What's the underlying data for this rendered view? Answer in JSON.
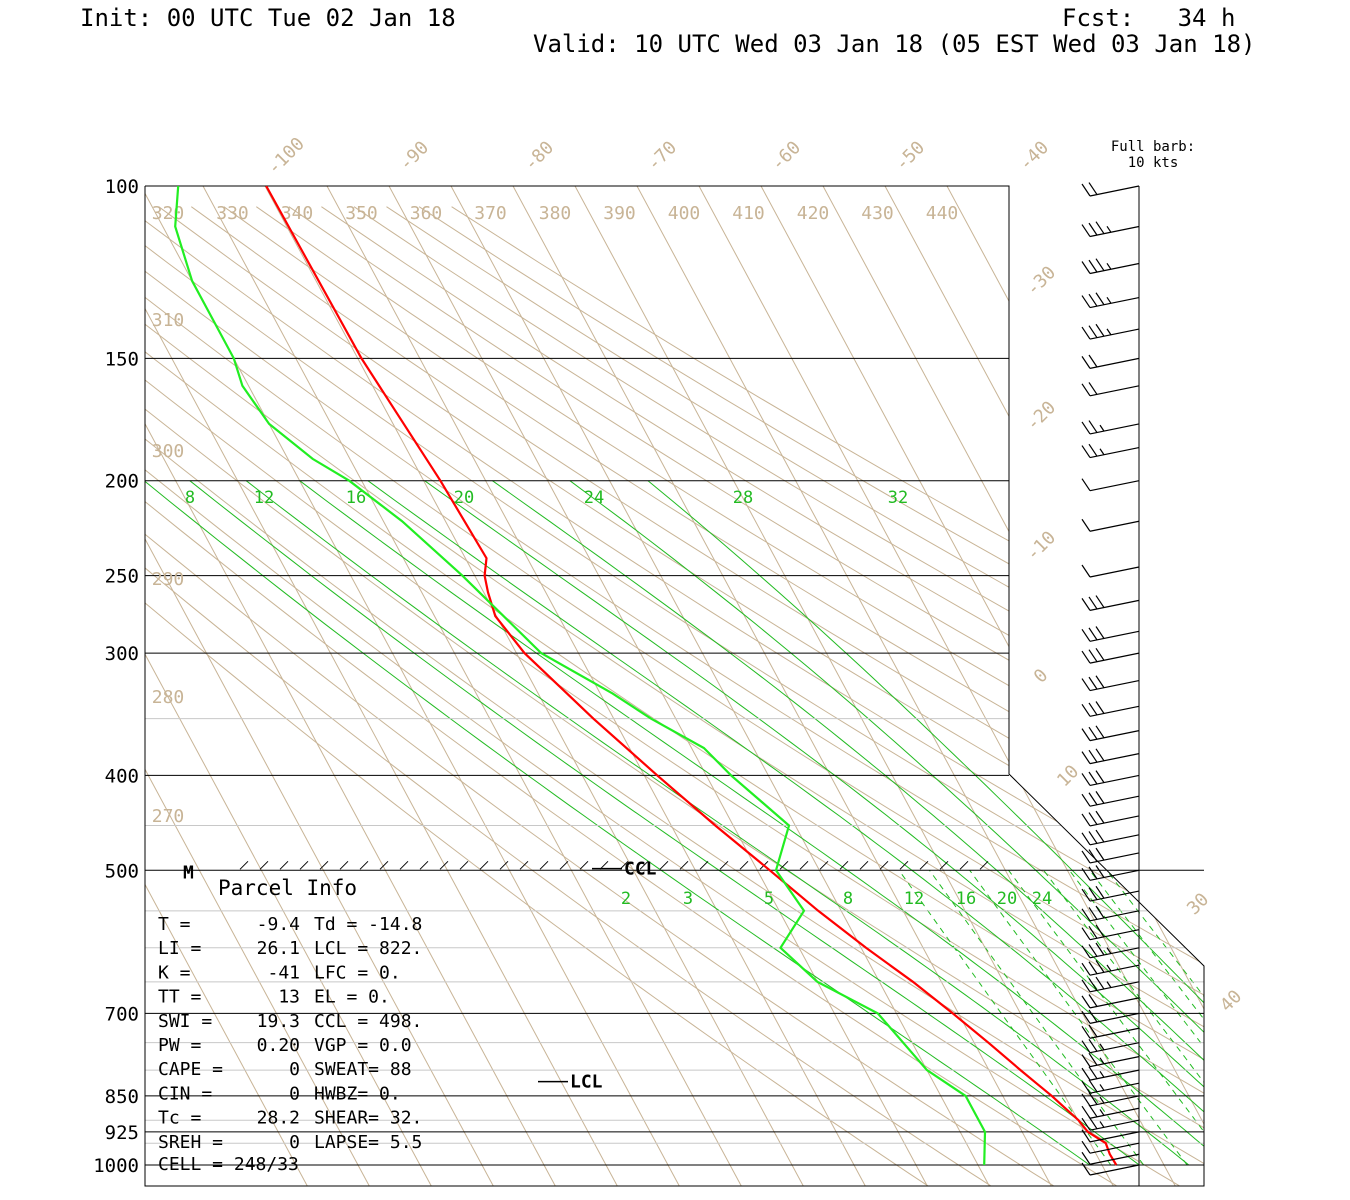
{
  "header": {
    "init": "Init: 00 UTC Tue 02 Jan 18",
    "fcst": "Fcst:   34 h",
    "valid": "Valid: 10 UTC Wed 03 Jan 18 (05 EST Wed 03 Jan 18)"
  },
  "barb_legend": {
    "line1": "Full barb:",
    "line2": "10 kts"
  },
  "chart_data": {
    "type": "line",
    "y_axis": "pressure (hPa), log scale",
    "ylim": [
      1000,
      100
    ],
    "pressure_labels": [
      100,
      150,
      200,
      250,
      300,
      400,
      500,
      700,
      850,
      925,
      1000
    ],
    "isotherm_labels": [
      -100,
      -90,
      -80,
      -70,
      -60,
      -50,
      -40,
      -30,
      -20,
      -10,
      0,
      10,
      30,
      40
    ],
    "theta_labels_top": [
      320,
      330,
      340,
      350,
      360,
      370,
      380,
      390,
      400,
      410,
      420,
      430,
      440
    ],
    "theta_labels_left": [
      310,
      300,
      290,
      280,
      270
    ],
    "mixing_ratio_labels_upper": [
      8,
      12,
      16,
      20,
      24,
      28,
      32
    ],
    "mixing_ratio_labels_lower": [
      2,
      3,
      5,
      8,
      12,
      16,
      20,
      24
    ],
    "series": [
      {
        "color": "#ff0000",
        "points": [
          [
            1000,
            -7.7
          ],
          [
            975,
            -7.8
          ],
          [
            950,
            -7.5
          ],
          [
            925,
            -9.4
          ],
          [
            900,
            -9.9
          ],
          [
            875,
            -11.0
          ],
          [
            850,
            -12.1
          ],
          [
            825,
            -13.5
          ],
          [
            800,
            -14.9
          ],
          [
            750,
            -17.7
          ],
          [
            700,
            -20.9
          ],
          [
            650,
            -24.6
          ],
          [
            600,
            -29.2
          ],
          [
            550,
            -33.7
          ],
          [
            500,
            -38.0
          ],
          [
            450,
            -42.9
          ],
          [
            400,
            -47.9
          ],
          [
            350,
            -53.3
          ],
          [
            300,
            -58.7
          ],
          [
            275,
            -60.2
          ],
          [
            260,
            -59.3
          ],
          [
            250,
            -58.4
          ],
          [
            240,
            -56.6
          ],
          [
            200,
            -57.3
          ],
          [
            150,
            -59.4
          ],
          [
            100,
            -59.8
          ]
        ]
      },
      {
        "color": "#22ee22",
        "points": [
          [
            1000,
            -29.0
          ],
          [
            925,
            -26.0
          ],
          [
            850,
            -26.0
          ],
          [
            800,
            -30.0
          ],
          [
            700,
            -33.0
          ],
          [
            650,
            -40.0
          ],
          [
            600,
            -43.0
          ],
          [
            550,
            -36.0
          ],
          [
            500,
            -37.0
          ],
          [
            450,
            -31.0
          ],
          [
            400,
            -36.0
          ],
          [
            375,
            -38.0
          ],
          [
            350,
            -44.0
          ],
          [
            330,
            -48.0
          ],
          [
            300,
            -56.0
          ],
          [
            250,
            -62.0
          ],
          [
            220,
            -67.0
          ],
          [
            200,
            -72.0
          ],
          [
            190,
            -76.0
          ],
          [
            175,
            -80.0
          ],
          [
            160,
            -81.0
          ],
          [
            150,
            -80.0
          ],
          [
            125,
            -80.0
          ],
          [
            110,
            -78.0
          ],
          [
            100,
            -74.0
          ]
        ]
      }
    ],
    "markers": [
      {
        "label": "CCL",
        "pressure": 498
      },
      {
        "label": "LCL",
        "pressure": 822
      },
      {
        "label": "M",
        "pressure": 500
      }
    ],
    "wind_barbs_kts": [
      [
        100,
        20
      ],
      [
        110,
        25
      ],
      [
        120,
        25
      ],
      [
        130,
        25
      ],
      [
        140,
        25
      ],
      [
        150,
        20
      ],
      [
        160,
        20
      ],
      [
        175,
        15
      ],
      [
        185,
        15
      ],
      [
        200,
        10
      ],
      [
        220,
        10
      ],
      [
        245,
        10
      ],
      [
        265,
        30
      ],
      [
        285,
        30
      ],
      [
        300,
        30
      ],
      [
        320,
        30
      ],
      [
        340,
        30
      ],
      [
        360,
        30
      ],
      [
        380,
        30
      ],
      [
        400,
        30
      ],
      [
        420,
        30
      ],
      [
        440,
        30
      ],
      [
        460,
        30
      ],
      [
        480,
        30
      ],
      [
        500,
        30
      ],
      [
        525,
        30
      ],
      [
        550,
        30
      ],
      [
        575,
        30
      ],
      [
        600,
        25
      ],
      [
        625,
        25
      ],
      [
        650,
        25
      ],
      [
        675,
        20
      ],
      [
        700,
        20
      ],
      [
        725,
        20
      ],
      [
        750,
        15
      ],
      [
        775,
        15
      ],
      [
        800,
        15
      ],
      [
        825,
        15
      ],
      [
        850,
        15
      ],
      [
        875,
        15
      ],
      [
        900,
        15
      ],
      [
        925,
        10
      ],
      [
        950,
        10
      ],
      [
        975,
        10
      ],
      [
        1000,
        10
      ]
    ]
  },
  "parcel_info": {
    "title": "Parcel Info",
    "rows": [
      [
        "T  =",
        "-9.4",
        "Td = -14.8"
      ],
      [
        "LI =",
        "26.1",
        "LCL =  822."
      ],
      [
        "K  =",
        "-41",
        "LFC =    0."
      ],
      [
        "TT =",
        "13",
        "EL  =    0."
      ],
      [
        "SWI =",
        "19.3",
        "CCL =  498."
      ],
      [
        "PW =",
        "0.20",
        "VGP =   0.0"
      ],
      [
        "CAPE =",
        "0",
        "SWEAT=   88"
      ],
      [
        "CIN =",
        "0",
        "HWBZ=    0."
      ],
      [
        "Tc =",
        "28.2",
        "SHEAR=  32."
      ],
      [
        "SREH =",
        "0",
        "LAPSE=   5.5"
      ]
    ],
    "cell": "CELL = 248/33"
  },
  "colors": {
    "temperature": "#ff0000",
    "dewpoint": "#22ee22",
    "mixing_ratio": "#22bb22",
    "background_lines": "#c8b496"
  }
}
